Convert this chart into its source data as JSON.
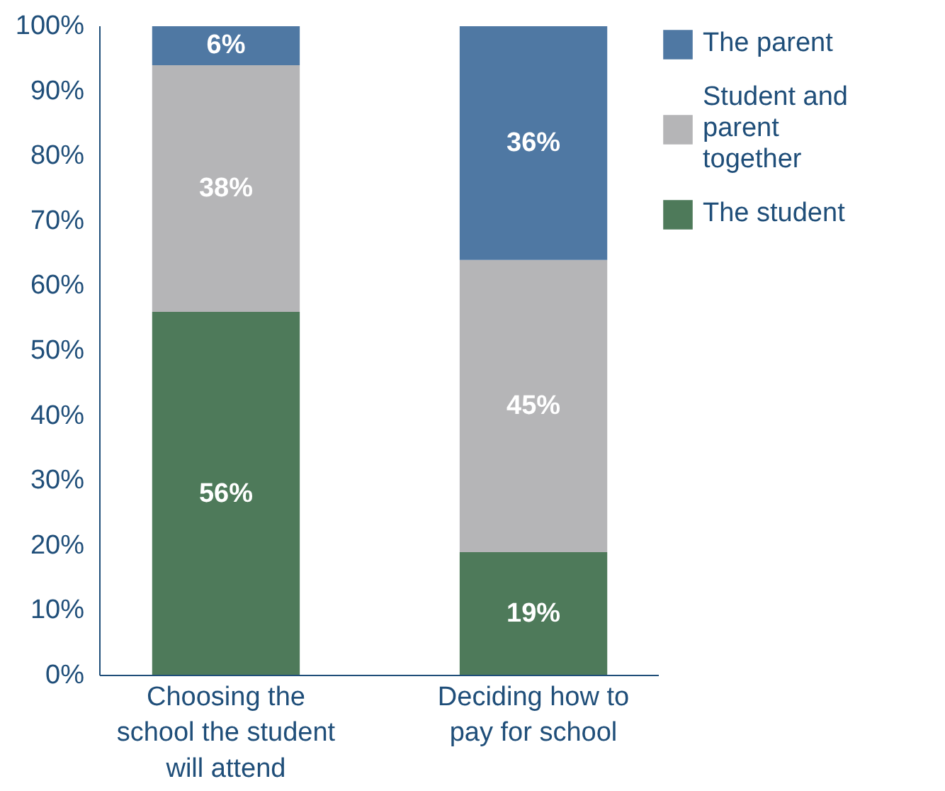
{
  "chart_data": {
    "type": "bar",
    "stacked": true,
    "categories": [
      "Choosing the school the student will attend",
      "Deciding how to pay for school"
    ],
    "series": [
      {
        "name": "The student",
        "color": "#4e7a5a",
        "values": [
          56,
          19
        ],
        "value_labels": [
          "56%",
          "19%"
        ]
      },
      {
        "name": "Student and parent together",
        "color": "#b5b5b7",
        "values": [
          38,
          45
        ],
        "value_labels": [
          "38%",
          "45%"
        ]
      },
      {
        "name": "The parent",
        "color": "#4f78a3",
        "values": [
          6,
          36
        ],
        "value_labels": [
          "6%",
          "36%"
        ]
      }
    ],
    "ylim": [
      0,
      100
    ],
    "yticks": [
      {
        "value": 0,
        "label": "0%"
      },
      {
        "value": 10,
        "label": "10%"
      },
      {
        "value": 20,
        "label": "20%"
      },
      {
        "value": 30,
        "label": "30%"
      },
      {
        "value": 40,
        "label": "40%"
      },
      {
        "value": 50,
        "label": "50%"
      },
      {
        "value": 60,
        "label": "60%"
      },
      {
        "value": 70,
        "label": "70%"
      },
      {
        "value": 80,
        "label": "80%"
      },
      {
        "value": 90,
        "label": "90%"
      },
      {
        "value": 100,
        "label": "100%"
      }
    ],
    "grid": false,
    "legend": "top right"
  }
}
